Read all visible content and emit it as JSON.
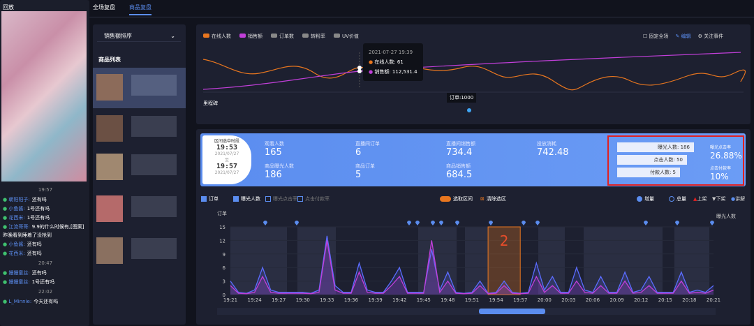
{
  "sidebar": {
    "title": "回放",
    "feed": [
      {
        "time": "19:57"
      },
      {
        "user": "朝阳阳子:",
        "text": "还有吗"
      },
      {
        "user": "小鱼酱:",
        "text": "1号还有吗"
      },
      {
        "user": "花西米:",
        "text": "1号还有吗"
      },
      {
        "user": "江流哥哥:",
        "text": "9.9的什么时候有,[图案]昨晚看到睡着了没抢到"
      },
      {
        "user": "小鱼酱:",
        "text": "还有吗"
      },
      {
        "user": "花西米:",
        "text": "还有吗"
      },
      {
        "time": "20:47"
      },
      {
        "user": "姗姗童丝:",
        "text": "还有吗"
      },
      {
        "user": "姗姗童丝:",
        "text": "1号还有吗"
      },
      {
        "time": "22:02"
      },
      {
        "user": "L_Minnie:",
        "text": "今天还有吗"
      }
    ]
  },
  "tabs": [
    "全场复盘",
    "商品复盘"
  ],
  "products": {
    "sort": "销售额排序",
    "title": "商品列表"
  },
  "top_chart": {
    "legend": [
      "在线人数",
      "销售额",
      "订单数",
      "转粉率",
      "UV价值"
    ],
    "controls": [
      "固定全场",
      "编辑",
      "关注事件"
    ],
    "tooltip": {
      "time": "2021-07-27 19:39",
      "rows": [
        "在线人数: 61",
        "销售额: 112,531.4"
      ]
    },
    "milestone": "里程碑",
    "marker": "订单:1000"
  },
  "stats": {
    "range_title": "区间选中时段",
    "start": "19:53",
    "start_date": "2021/07/27",
    "to": "至",
    "end": "19:57",
    "end_date": "2021/07/27",
    "metrics": [
      {
        "label": "观看人数",
        "value": 165
      },
      {
        "label": "直播间订单",
        "value": 6
      },
      {
        "label": "直播间销售额",
        "value": 734.4
      },
      {
        "label": "投放消耗",
        "value": 742.48
      },
      {
        "label": "商品曝光人数",
        "value": 186
      },
      {
        "label": "商品订单",
        "value": 5
      },
      {
        "label": "商品销售额",
        "value": 684.5
      }
    ],
    "funnel": [
      "曝光人数: 186",
      "点击人数: 50",
      "付款人数: 5"
    ],
    "rates": [
      {
        "label": "曝光点击率",
        "value": "26.88%"
      },
      {
        "label": "点击付款率",
        "value": "10%"
      }
    ]
  },
  "chart_data": {
    "type": "line",
    "checkboxes": [
      "订单",
      "曝光人数",
      "曝光点击率",
      "点击付款率"
    ],
    "toggle": "选取区间",
    "clear": "清除选区",
    "radios": [
      "增量",
      "总量"
    ],
    "events": [
      "上架",
      "下架",
      "讲解"
    ],
    "ylabel": "订单",
    "y2label": "曝光人数",
    "annotation": "2",
    "categories": [
      "19:21",
      null,
      null,
      "19:24",
      null,
      null,
      "19:27",
      null,
      null,
      "19:30",
      null,
      null,
      "19:33",
      null,
      null,
      "19:36",
      null,
      null,
      "19:39",
      null,
      null,
      "19:42",
      null,
      null,
      "19:45",
      null,
      null,
      "19:48",
      null,
      null,
      "19:51",
      null,
      null,
      "19:54",
      null,
      null,
      "19:57",
      null,
      null,
      "20:00",
      null,
      null,
      "20:03",
      null,
      null,
      "20:06",
      null,
      null,
      "20:09",
      null,
      null,
      "20:12",
      null,
      null,
      "20:15",
      null,
      null,
      "20:18",
      null,
      null,
      "20:21"
    ],
    "ylim": [
      0,
      15
    ],
    "yticks": [
      0,
      3,
      6,
      9,
      12,
      15
    ],
    "series": [
      {
        "name": "曝光人数",
        "color": "#5b6cff",
        "values": [
          3,
          0.5,
          0.3,
          1,
          6,
          1,
          0.5,
          0.5,
          0.5,
          0.5,
          0.3,
          1,
          13,
          2,
          0.5,
          0.5,
          7,
          1,
          0.5,
          0.5,
          3,
          6,
          0.5,
          0.5,
          0.5,
          10,
          1,
          5,
          0.5,
          0.3,
          0.5,
          3,
          0.3,
          0.5,
          3,
          0.5,
          0.3,
          0.5,
          7,
          1,
          4,
          0.5,
          0.5,
          6,
          1,
          0.5,
          4,
          0.5,
          0.5,
          5,
          0.5,
          1,
          4,
          0.5,
          0.5,
          0.5,
          5,
          0.5,
          1,
          0.5,
          2
        ]
      },
      {
        "name": "订单",
        "color": "#c13fd9",
        "values": [
          2,
          0.3,
          0.2,
          0.5,
          4,
          0.5,
          0.3,
          0.3,
          0.3,
          0.3,
          0.2,
          0.5,
          12,
          1,
          0.3,
          0.3,
          5,
          0.5,
          0.3,
          0.3,
          2,
          4,
          0.3,
          0.3,
          0.3,
          12,
          0.5,
          3,
          0.3,
          0.2,
          0.3,
          2,
          0.2,
          0.3,
          2,
          0.3,
          0.2,
          0.3,
          4,
          0.5,
          2,
          0.3,
          0.3,
          3,
          0.5,
          0.3,
          2,
          0.3,
          0.3,
          3,
          0.3,
          0.5,
          2,
          0.3,
          0.3,
          0.3,
          3,
          0.3,
          0.5,
          0.3,
          1
        ]
      }
    ]
  }
}
